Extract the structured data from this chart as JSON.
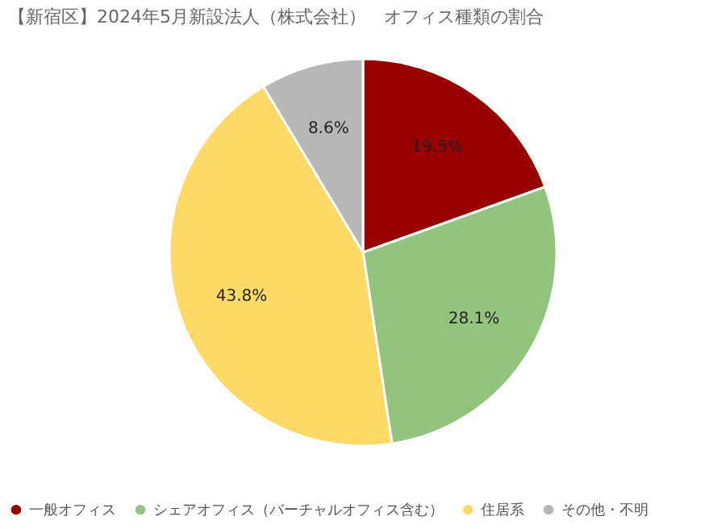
{
  "chart_data": {
    "type": "pie",
    "title": "【新宿区】2024年5月新設法人（株式会社）　オフィス種類の割合",
    "categories": [
      "一般オフィス",
      "シェアオフィス（バーチャルオフィス含む）",
      "住居系",
      "その他・不明"
    ],
    "values": [
      19.5,
      28.1,
      43.8,
      8.6
    ],
    "colors": [
      "#990000",
      "#93c47d",
      "#ffd966",
      "#b7b7b7"
    ],
    "value_labels": [
      "19.5%",
      "28.1%",
      "43.8%",
      "8.6%"
    ],
    "legend": "bottom"
  }
}
